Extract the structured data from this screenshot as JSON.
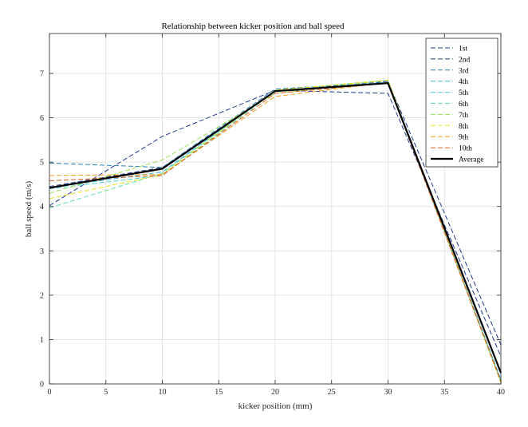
{
  "chart_data": {
    "type": "line",
    "title": "Relationship between kicker position and ball speed",
    "xlabel": "kicker position (mm)",
    "ylabel": "ball speed (m/s)",
    "xlim": [
      0,
      40
    ],
    "ylim": [
      0,
      7.9
    ],
    "xticks": [
      0,
      5,
      10,
      15,
      20,
      25,
      30,
      35,
      40
    ],
    "yticks": [
      0,
      1,
      2,
      3,
      4,
      5,
      6,
      7
    ],
    "grid": true,
    "legend_position": "top-right",
    "x": [
      0,
      10,
      20,
      30,
      40
    ],
    "series": [
      {
        "name": "1st",
        "values": [
          4.45,
          4.88,
          6.6,
          6.82,
          0.88
        ],
        "color": "#1f3a8a",
        "dashed": true
      },
      {
        "name": "2nd",
        "values": [
          4.02,
          5.58,
          6.62,
          6.55,
          0.62
        ],
        "color": "#1f3a8a",
        "dashed": true
      },
      {
        "name": "3rd",
        "values": [
          4.98,
          4.88,
          6.65,
          6.8,
          0.1
        ],
        "color": "#2c7fb8",
        "dashed": true
      },
      {
        "name": "4th",
        "values": [
          4.42,
          4.78,
          6.62,
          6.78,
          0.08
        ],
        "color": "#3ab7d8",
        "dashed": true
      },
      {
        "name": "5th",
        "values": [
          4.4,
          4.7,
          6.6,
          6.8,
          0.05
        ],
        "color": "#4fd6d6",
        "dashed": true
      },
      {
        "name": "6th",
        "values": [
          3.97,
          4.75,
          6.62,
          6.85,
          0.05
        ],
        "color": "#5fe0a8",
        "dashed": true
      },
      {
        "name": "7th",
        "values": [
          4.3,
          5.05,
          6.55,
          6.85,
          0.05
        ],
        "color": "#9be05a",
        "dashed": true
      },
      {
        "name": "8th",
        "values": [
          4.18,
          4.72,
          6.62,
          6.85,
          0.02
        ],
        "color": "#f0e020",
        "dashed": true
      },
      {
        "name": "9th",
        "values": [
          4.7,
          4.72,
          6.48,
          6.8,
          0.05
        ],
        "color": "#f0a020",
        "dashed": true
      },
      {
        "name": "10th",
        "values": [
          4.58,
          4.7,
          6.55,
          6.78,
          0.05
        ],
        "color": "#d96020",
        "dashed": true
      },
      {
        "name": "Average",
        "values": [
          4.42,
          4.85,
          6.6,
          6.78,
          0.25
        ],
        "color": "#000000",
        "dashed": false
      }
    ]
  }
}
